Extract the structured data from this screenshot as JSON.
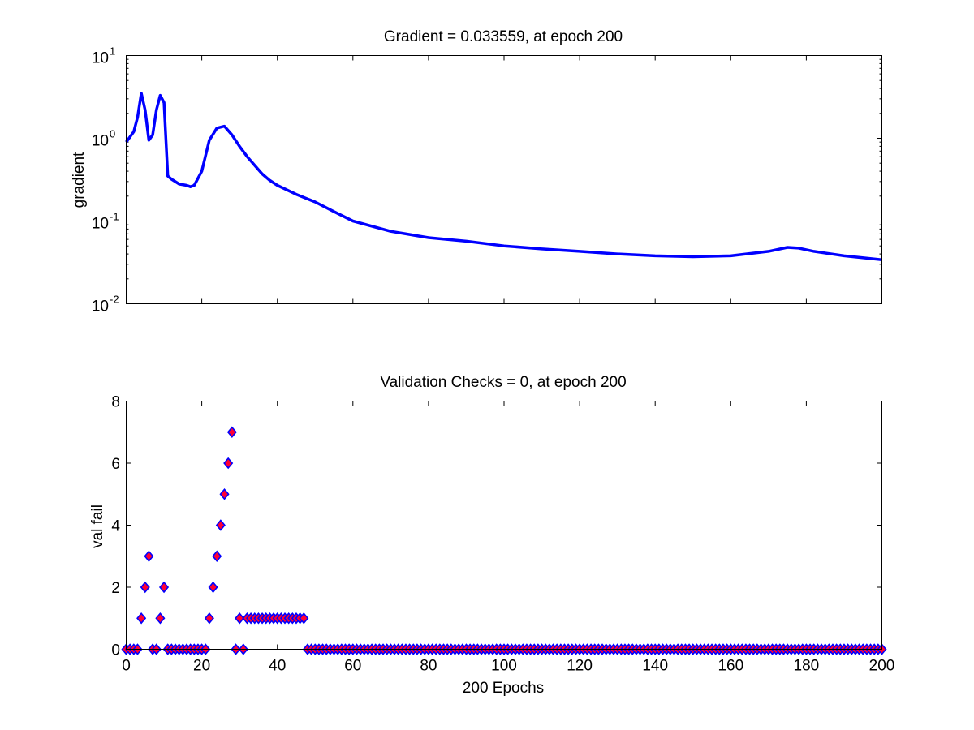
{
  "chart_data": [
    {
      "type": "line",
      "title": "Gradient = 0.033559, at epoch 200",
      "xlabel": "",
      "ylabel": "gradient",
      "yscale": "log",
      "xlim": [
        0,
        200
      ],
      "ylim": [
        0.01,
        10
      ],
      "grid": false,
      "y_ticks": [
        {
          "base": "10",
          "exp": "-2"
        },
        {
          "base": "10",
          "exp": "-1"
        },
        {
          "base": "10",
          "exp": "0"
        },
        {
          "base": "10",
          "exp": "1"
        }
      ],
      "x_ticks": [
        0,
        20,
        40,
        60,
        80,
        100,
        120,
        140,
        160,
        180,
        200
      ],
      "x_tick_labels_visible": false,
      "color": "#0000ff",
      "series": [
        {
          "x": [
            0,
            2,
            3,
            4,
            5,
            6,
            7,
            8,
            9,
            10,
            11,
            12,
            14,
            16,
            17,
            18,
            20,
            22,
            24,
            26,
            28,
            30,
            32,
            34,
            36,
            38,
            40,
            45,
            50,
            55,
            60,
            70,
            80,
            90,
            100,
            110,
            120,
            130,
            140,
            150,
            160,
            170,
            175,
            178,
            182,
            190,
            200
          ],
          "y": [
            0.9,
            1.2,
            1.8,
            3.5,
            2.2,
            0.95,
            1.1,
            2.2,
            3.3,
            2.7,
            0.35,
            0.32,
            0.28,
            0.27,
            0.26,
            0.27,
            0.4,
            0.95,
            1.33,
            1.4,
            1.1,
            0.8,
            0.6,
            0.47,
            0.37,
            0.31,
            0.27,
            0.21,
            0.17,
            0.13,
            0.1,
            0.075,
            0.063,
            0.057,
            0.05,
            0.046,
            0.043,
            0.04,
            0.038,
            0.037,
            0.038,
            0.043,
            0.048,
            0.047,
            0.043,
            0.038,
            0.034
          ]
        }
      ]
    },
    {
      "type": "scatter",
      "title": "Validation Checks = 0, at epoch 200",
      "xlabel": "200 Epochs",
      "ylabel": "val fail",
      "xlim": [
        0,
        200
      ],
      "ylim": [
        0,
        8
      ],
      "grid": false,
      "x_ticks": [
        0,
        20,
        40,
        60,
        80,
        100,
        120,
        140,
        160,
        180,
        200
      ],
      "y_ticks": [
        0,
        2,
        4,
        6,
        8
      ],
      "marker": "diamond",
      "marker_face_color": "#ff0033",
      "marker_edge_color": "#0000ff",
      "series": [
        {
          "values": [
            0,
            0,
            0,
            0,
            1,
            2,
            3,
            0,
            0,
            1,
            2,
            0,
            0,
            0,
            0,
            0,
            0,
            0,
            0,
            0,
            0,
            0,
            1,
            2,
            3,
            4,
            5,
            6,
            7,
            0,
            1,
            0,
            1,
            1,
            1,
            1,
            1,
            1,
            1,
            1,
            1,
            1,
            1,
            1,
            1,
            1,
            1,
            1,
            0,
            0,
            0,
            0,
            0,
            0,
            0,
            0,
            0,
            0,
            0,
            0,
            0,
            0,
            0,
            0,
            0,
            0,
            0,
            0,
            0,
            0,
            0,
            0,
            0,
            0,
            0,
            0,
            0,
            0,
            0,
            0,
            0,
            0,
            0,
            0,
            0,
            0,
            0,
            0,
            0,
            0,
            0,
            0,
            0,
            0,
            0,
            0,
            0,
            0,
            0,
            0,
            0,
            0,
            0,
            0,
            0,
            0,
            0,
            0,
            0,
            0,
            0,
            0,
            0,
            0,
            0,
            0,
            0,
            0,
            0,
            0,
            0,
            0,
            0,
            0,
            0,
            0,
            0,
            0,
            0,
            0,
            0,
            0,
            0,
            0,
            0,
            0,
            0,
            0,
            0,
            0,
            0,
            0,
            0,
            0,
            0,
            0,
            0,
            0,
            0,
            0,
            0,
            0,
            0,
            0,
            0,
            0,
            0,
            0,
            0,
            0,
            0,
            0,
            0,
            0,
            0,
            0,
            0,
            0,
            0,
            0,
            0,
            0,
            0,
            0,
            0,
            0,
            0,
            0,
            0,
            0,
            0,
            0,
            0,
            0,
            0,
            0,
            0,
            0,
            0,
            0,
            0,
            0,
            0,
            0,
            0,
            0,
            0,
            0,
            0,
            0,
            0
          ],
          "x_start": 0,
          "x_step": 1
        }
      ]
    }
  ]
}
